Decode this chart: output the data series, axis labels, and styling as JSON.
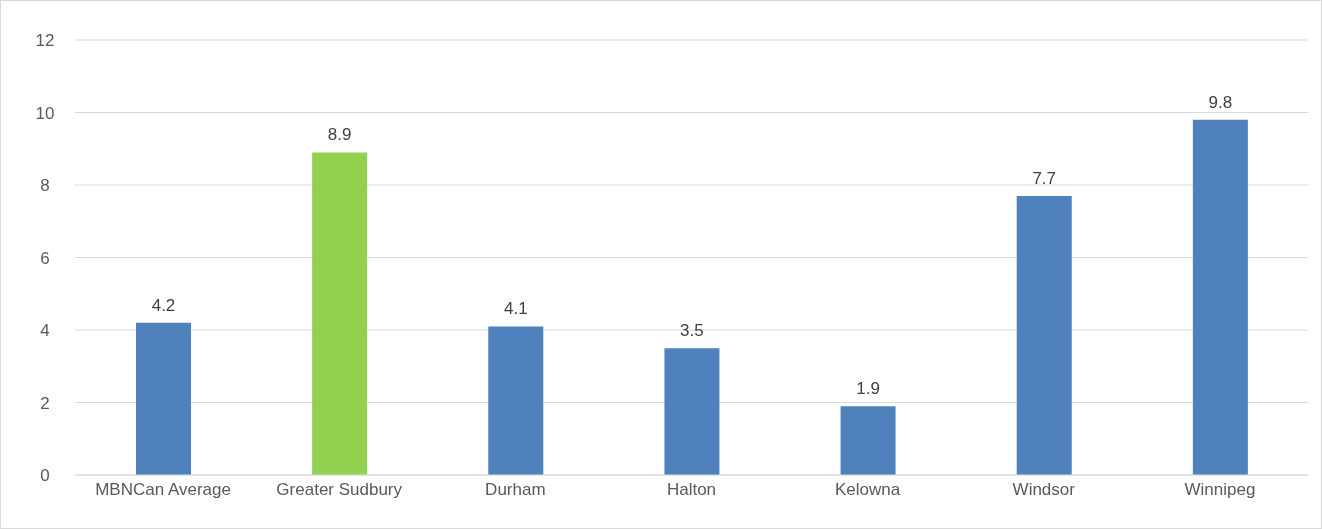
{
  "chart_data": {
    "type": "bar",
    "categories": [
      "MBNCan Average",
      "Greater Sudbury",
      "Durham",
      "Halton",
      "Kelowna",
      "Windsor",
      "Winnipeg"
    ],
    "values": [
      4.2,
      8.9,
      4.1,
      3.5,
      1.9,
      7.7,
      9.8
    ],
    "colors": [
      "#4f81bd",
      "#92d050",
      "#4f81bd",
      "#4f81bd",
      "#4f81bd",
      "#4f81bd",
      "#4f81bd"
    ],
    "ylim": [
      0,
      12
    ],
    "yticks": [
      0,
      2,
      4,
      6,
      8,
      10,
      12
    ],
    "grid": "y",
    "data_labels": true
  }
}
